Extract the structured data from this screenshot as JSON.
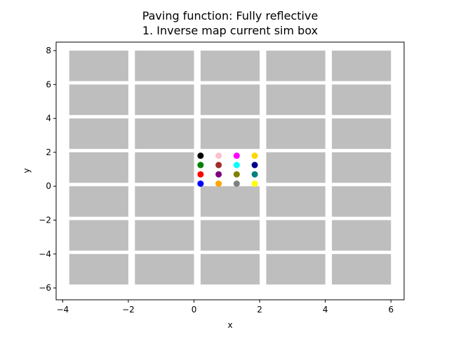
{
  "chart_data": {
    "type": "scatter",
    "title": "Paving function: Fully reflective",
    "subtitle": "1. Inverse map current sim box",
    "xlabel": "x",
    "ylabel": "y",
    "xlim": [
      -4.2,
      6.4
    ],
    "ylim": [
      -6.7,
      8.5
    ],
    "xticks": [
      -4,
      -2,
      0,
      2,
      4,
      6
    ],
    "xtick_labels": [
      "−4",
      "−2",
      "0",
      "2",
      "4",
      "6"
    ],
    "yticks": [
      -6,
      -4,
      -2,
      0,
      2,
      4,
      6,
      8
    ],
    "ytick_labels": [
      "−6",
      "−4",
      "−2",
      "0",
      "2",
      "4",
      "6",
      "8"
    ],
    "grid": false,
    "tiles": {
      "color": "#bebebe",
      "x_ranges": [
        [
          -3.8,
          -2.0
        ],
        [
          -1.8,
          0.0
        ],
        [
          0.2,
          2.0
        ],
        [
          2.2,
          4.0
        ],
        [
          4.2,
          6.0
        ]
      ],
      "y_ranges": [
        [
          -5.8,
          -4.0
        ],
        [
          -3.8,
          -2.0
        ],
        [
          -1.8,
          0.0
        ],
        [
          0.2,
          2.0
        ],
        [
          2.2,
          4.0
        ],
        [
          4.2,
          6.0
        ],
        [
          6.2,
          8.0
        ]
      ],
      "empty_cells": [
        [
          2,
          3
        ]
      ]
    },
    "points": [
      {
        "x": 0.2,
        "y": 1.8,
        "color": "#000000"
      },
      {
        "x": 0.75,
        "y": 1.8,
        "color": "#ffc0cb"
      },
      {
        "x": 1.3,
        "y": 1.8,
        "color": "#ff00ff"
      },
      {
        "x": 1.85,
        "y": 1.8,
        "color": "#ffd700"
      },
      {
        "x": 0.2,
        "y": 1.25,
        "color": "#008000"
      },
      {
        "x": 0.75,
        "y": 1.25,
        "color": "#a52a2a"
      },
      {
        "x": 1.3,
        "y": 1.25,
        "color": "#00ffff"
      },
      {
        "x": 1.85,
        "y": 1.25,
        "color": "#00008b"
      },
      {
        "x": 0.2,
        "y": 0.7,
        "color": "#ff0000"
      },
      {
        "x": 0.75,
        "y": 0.7,
        "color": "#800080"
      },
      {
        "x": 1.3,
        "y": 0.7,
        "color": "#808000"
      },
      {
        "x": 1.85,
        "y": 0.7,
        "color": "#008080"
      },
      {
        "x": 0.2,
        "y": 0.15,
        "color": "#0000ff"
      },
      {
        "x": 0.75,
        "y": 0.15,
        "color": "#ffa500"
      },
      {
        "x": 1.3,
        "y": 0.15,
        "color": "#808080"
      },
      {
        "x": 1.85,
        "y": 0.15,
        "color": "#ffff00"
      }
    ]
  }
}
